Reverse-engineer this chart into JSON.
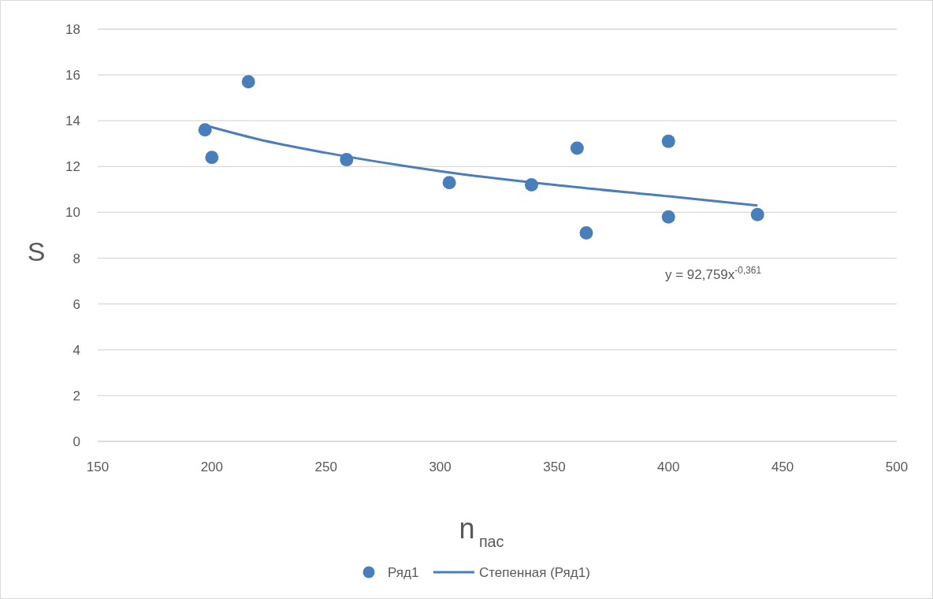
{
  "chart_data": {
    "type": "scatter",
    "xlabel": "n$_{пас}$",
    "ylabel": "S",
    "xlim": [
      150,
      500
    ],
    "xticks": [
      150,
      200,
      250,
      300,
      350,
      400,
      450,
      500
    ],
    "ylim": [
      0,
      18
    ],
    "yticks": [
      0,
      2,
      4,
      6,
      8,
      10,
      12,
      14,
      16,
      18
    ],
    "grid": "y",
    "legend": "bottom",
    "marker": "circle",
    "annotations": [
      "y = 92,759x$^{-0,361}$"
    ],
    "series": [
      {
        "name": "Ряд1",
        "color": "#4a7ebb",
        "x": [
          197,
          200,
          216,
          259,
          304,
          340,
          360,
          364,
          400,
          400,
          439
        ],
        "values": [
          13.6,
          12.4,
          15.7,
          12.3,
          11.3,
          11.2,
          12.8,
          9.1,
          13.1,
          9.8,
          9.9
        ]
      },
      {
        "name": "Степенная (Ряд1)",
        "type": "line",
        "color": "#4a7ebb",
        "line_style": "solid",
        "marker": "none",
        "x": [
          197,
          220,
          250,
          300,
          350,
          400,
          439
        ],
        "values": [
          13.8,
          13.2,
          12.6,
          11.8,
          11.2,
          10.7,
          10.3
        ]
      }
    ]
  }
}
